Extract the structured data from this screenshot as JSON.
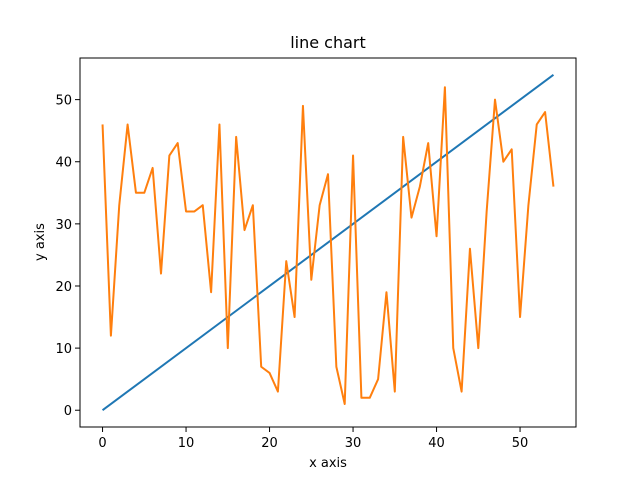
{
  "chart_data": {
    "type": "line",
    "title": "line chart",
    "xlabel": "x axis",
    "ylabel": "y axis",
    "xlim": [
      -2.7,
      56.7
    ],
    "ylim": [
      -2.7,
      56.7
    ],
    "xticks": [
      0,
      10,
      20,
      30,
      40,
      50
    ],
    "yticks": [
      0,
      10,
      20,
      30,
      40,
      50
    ],
    "grid": false,
    "legend": "none",
    "series": [
      {
        "color": "#1f77b4",
        "x": [
          0,
          54
        ],
        "y": [
          0,
          54
        ]
      },
      {
        "color": "#ff7f0e",
        "x": [
          0,
          1,
          2,
          3,
          4,
          5,
          6,
          7,
          8,
          9,
          10,
          11,
          12,
          13,
          14,
          15,
          16,
          17,
          18,
          19,
          20,
          21,
          22,
          23,
          24,
          25,
          26,
          27,
          28,
          29,
          30,
          31,
          32,
          33,
          34,
          35,
          36,
          37,
          38,
          39,
          40,
          41,
          42,
          43,
          44,
          45,
          46,
          47,
          48,
          49,
          50,
          51,
          52,
          53,
          54
        ],
        "y": [
          46,
          12,
          33,
          46,
          35,
          35,
          39,
          22,
          41,
          43,
          32,
          32,
          33,
          19,
          46,
          10,
          44,
          29,
          33,
          7,
          6,
          3,
          24,
          15,
          49,
          21,
          33,
          38,
          7,
          1,
          41,
          2,
          2,
          5,
          19,
          3,
          44,
          31,
          36,
          43,
          28,
          52,
          10,
          3,
          26,
          10,
          32,
          50,
          40,
          42,
          15,
          33,
          46,
          48,
          36
        ]
      }
    ]
  }
}
